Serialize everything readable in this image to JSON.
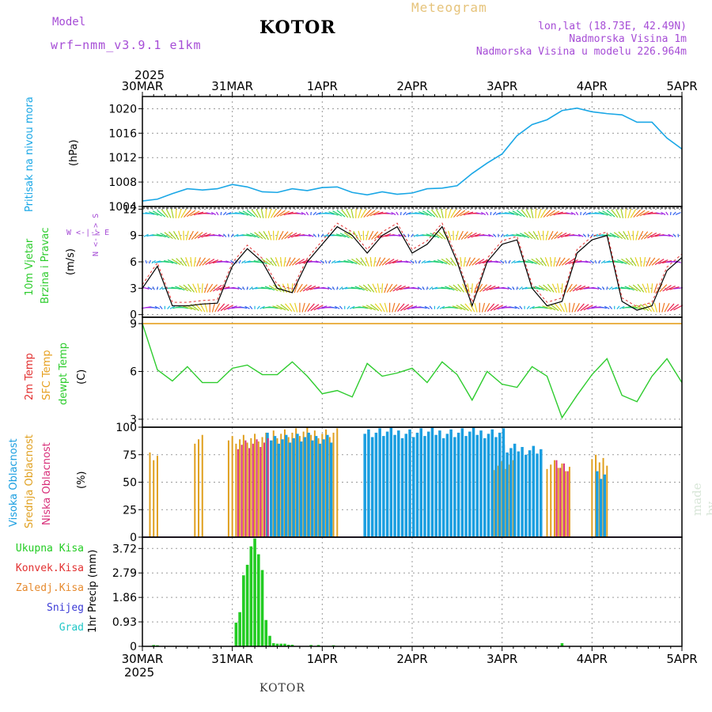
{
  "header": {
    "meteogram": "Meteogram",
    "station": "KOTOR",
    "model_label": "Model",
    "model_name": "wrf−nmm_v3.9.1  e1km",
    "lonlat": "lon,lat (18.73E, 42.49N)",
    "altitude": "Nadmorska Visina 1m",
    "model_altitude": "Nadmorska Visina u modelu 226.964m",
    "year_top": "2025",
    "year_bottom": "2025",
    "footer": "KOTOR",
    "made_by": "made by Angel"
  },
  "colors": {
    "pressure": "#1aa7e6",
    "temp_dew": "#2ecc2e",
    "sfc": "#e6a020",
    "t2m": "#e23030",
    "purple": "#a64dd6",
    "high_cloud": "#1a9ee0",
    "mid_cloud": "#e0a020",
    "low_cloud": "#d8307a",
    "precip": "#22cc22"
  },
  "chart_data": [
    {
      "type": "line",
      "panel": "pressure",
      "y_label_left": "Pritisak na nivou mora",
      "unit": "(hPa)",
      "x_ticks": [
        "30MAR",
        "31MAR",
        "1APR",
        "2APR",
        "3APR",
        "4APR",
        "5APR"
      ],
      "y_ticks": [
        1004,
        1008,
        1012,
        1016,
        1020
      ],
      "ylim": [
        1004,
        1022
      ],
      "x_hours": [
        0,
        4,
        8,
        12,
        16,
        20,
        24,
        28,
        32,
        36,
        40,
        44,
        48,
        52,
        56,
        60,
        64,
        68,
        72,
        76,
        80,
        84,
        88,
        92,
        96,
        100,
        104,
        108,
        112,
        116,
        120,
        124,
        128,
        132,
        136,
        140,
        144
      ],
      "values": [
        1004.9,
        1005.2,
        1006.1,
        1006.9,
        1006.7,
        1006.9,
        1007.6,
        1007.2,
        1006.4,
        1006.3,
        1006.9,
        1006.6,
        1007.1,
        1007.2,
        1006.3,
        1005.9,
        1006.4,
        1006.0,
        1006.2,
        1006.9,
        1007.0,
        1007.4,
        1009.4,
        1011.1,
        1012.6,
        1015.6,
        1017.4,
        1018.2,
        1019.7,
        1020.1,
        1019.5,
        1019.2,
        1019.0,
        1017.8,
        1017.8,
        1015.2,
        1013.4
      ]
    },
    {
      "type": "line",
      "panel": "wind",
      "y_label_left": "10m Vjetar",
      "y_label_left2": "Brzina i Pravac",
      "unit": "(m/s)",
      "compass": "W <-|-> E",
      "compass_v": "N <-|-> S",
      "y_ticks": [
        0,
        3,
        6,
        9,
        12
      ],
      "ylim": [
        -0.3,
        12.3
      ],
      "x_hours": [
        0,
        4,
        8,
        12,
        16,
        20,
        24,
        28,
        32,
        36,
        40,
        44,
        48,
        52,
        56,
        60,
        64,
        68,
        72,
        76,
        80,
        84,
        88,
        92,
        96,
        100,
        104,
        108,
        112,
        116,
        120,
        124,
        128,
        132,
        136,
        140,
        144
      ],
      "speed": [
        3.0,
        5.5,
        1.0,
        1.0,
        1.2,
        1.3,
        5.5,
        7.5,
        6.0,
        3.0,
        2.5,
        6.0,
        8.0,
        10.0,
        9.0,
        7.0,
        9.0,
        10.0,
        7.0,
        8.0,
        10.0,
        6.0,
        1.0,
        6.0,
        8.0,
        8.5,
        3.0,
        1.0,
        1.5,
        7.0,
        8.5,
        9.0,
        1.5,
        0.5,
        1.0,
        5.0,
        6.5
      ]
    },
    {
      "type": "line",
      "panel": "temperature",
      "y_label_left1": "2m Temp",
      "y_label_left2": "SFC Temp",
      "y_label_left3": "dewpt Temp",
      "unit": "(C)",
      "y_ticks": [
        3,
        6,
        9
      ],
      "ylim": [
        2.5,
        9.4
      ],
      "sfc_value": 9.0,
      "x_hours": [
        0,
        4,
        8,
        12,
        16,
        20,
        24,
        28,
        32,
        36,
        40,
        44,
        48,
        52,
        56,
        60,
        64,
        68,
        72,
        76,
        80,
        84,
        88,
        92,
        96,
        100,
        104,
        108,
        112,
        116,
        120,
        124,
        128,
        132,
        136,
        140,
        144
      ],
      "dewpoint": [
        9.0,
        6.1,
        5.4,
        6.3,
        5.3,
        5.3,
        6.2,
        6.4,
        5.8,
        5.8,
        6.6,
        5.7,
        4.6,
        4.8,
        4.4,
        6.5,
        5.7,
        5.9,
        6.2,
        5.3,
        6.6,
        5.8,
        4.2,
        6.0,
        5.2,
        5.0,
        6.3,
        5.7,
        3.1,
        4.5,
        5.8,
        6.8,
        4.5,
        4.1,
        5.7,
        6.8,
        5.3
      ]
    },
    {
      "type": "bar",
      "panel": "clouds",
      "y_label_left1": "Visoka Oblacnost",
      "y_label_left2": "Srednja Oblacnost",
      "y_label_left3": "Niska Oblacnost",
      "unit": "(%)",
      "y_ticks": [
        0,
        25,
        50,
        75,
        100
      ],
      "ylim": [
        0,
        100
      ],
      "high_segments": [
        {
          "start": 33,
          "end": 50,
          "value": 95
        },
        {
          "start": 59,
          "end": 96,
          "value": 100
        },
        {
          "start": 96,
          "end": 106,
          "value": 85
        },
        {
          "start": 121,
          "end": 123,
          "value": 60
        }
      ],
      "mid_segments": [
        {
          "start": 2,
          "end": 4,
          "value": 80
        },
        {
          "start": 14,
          "end": 16,
          "value": 95
        },
        {
          "start": 23,
          "end": 33,
          "value": 95
        },
        {
          "start": 35,
          "end": 52,
          "value": 100
        },
        {
          "start": 94,
          "end": 99,
          "value": 70
        },
        {
          "start": 108,
          "end": 114,
          "value": 70
        },
        {
          "start": 120,
          "end": 124,
          "value": 75
        }
      ],
      "low_segments": [
        {
          "start": 25,
          "end": 33,
          "value": 90
        },
        {
          "start": 110,
          "end": 113,
          "value": 70
        }
      ]
    },
    {
      "type": "bar",
      "panel": "precip",
      "legend": [
        "Ukupna Kisa",
        "Konvek.Kisa",
        "Zaledj.Kisa",
        "Snijeg",
        "Grad"
      ],
      "legend_colors": [
        "#22cc22",
        "#e23030",
        "#e68a2e",
        "#3b3bd6",
        "#22c7c7"
      ],
      "unit": "1hr Precip (mm)",
      "y_ticks": [
        0,
        0.93,
        1.86,
        2.79,
        3.72
      ],
      "ylim": [
        0,
        4.15
      ],
      "x_hours": [
        25,
        26,
        27,
        28,
        29,
        30,
        31,
        32,
        33,
        34,
        35,
        36,
        37,
        38,
        39,
        40,
        45,
        47,
        51,
        112,
        3,
        4
      ],
      "values": [
        0.9,
        1.3,
        2.7,
        3.1,
        3.8,
        4.1,
        3.5,
        2.9,
        1.0,
        0.4,
        0.12,
        0.1,
        0.1,
        0.1,
        0.06,
        0.06,
        0.05,
        0.05,
        0.04,
        0.12,
        0.05,
        0.04
      ]
    }
  ]
}
